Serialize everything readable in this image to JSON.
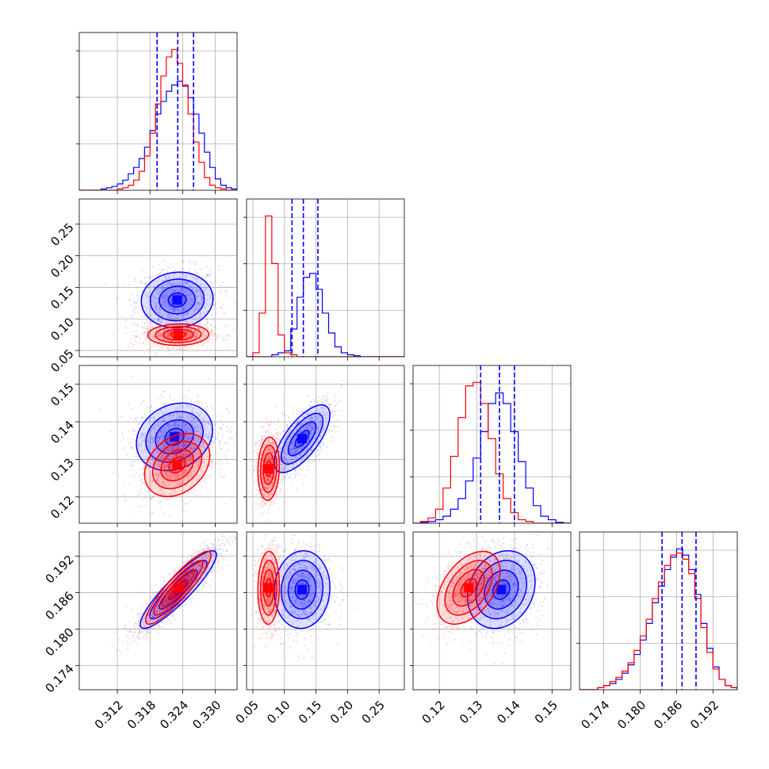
{
  "chart_data": {
    "type": "corner",
    "grid": true,
    "colors": {
      "blue": "#0000ff",
      "red": "#ff0000"
    },
    "parameters": [
      {
        "range": [
          0.305,
          0.334
        ],
        "ticks": [
          "0.312",
          "0.318",
          "0.324",
          "0.330"
        ]
      },
      {
        "range": [
          0.04,
          0.29
        ],
        "ticks": [
          "0.05",
          "0.10",
          "0.15",
          "0.20",
          "0.25"
        ]
      },
      {
        "range": [
          0.113,
          0.155
        ],
        "ticks": [
          "0.12",
          "0.13",
          "0.14",
          "0.15"
        ]
      },
      {
        "range": [
          0.17,
          0.196
        ],
        "ticks": [
          "0.174",
          "0.180",
          "0.186",
          "0.192"
        ]
      }
    ],
    "quantiles_blue": [
      [
        0.3193,
        0.3231,
        0.326
      ],
      [
        0.112,
        0.13,
        0.153
      ],
      [
        0.131,
        0.136,
        0.14
      ],
      [
        0.1836,
        0.1869,
        0.1892
      ]
    ],
    "series": [
      {
        "color": "blue",
        "hist": [
          {
            "bins": [
              0.305,
              0.306,
              0.307,
              0.308,
              0.309,
              0.31,
              0.311,
              0.312,
              0.313,
              0.314,
              0.315,
              0.316,
              0.317,
              0.318,
              0.319,
              0.32,
              0.321,
              0.322,
              0.323,
              0.324,
              0.325,
              0.326,
              0.327,
              0.328,
              0.329,
              0.33,
              0.331,
              0.332,
              0.333,
              0.334
            ],
            "counts": [
              0,
              0,
              0,
              0,
              1,
              2,
              3,
              5,
              8,
              13,
              18,
              25,
              34,
              47,
              60,
              70,
              78,
              83,
              86,
              82,
              73,
              60,
              45,
              30,
              18,
              9,
              4,
              2,
              1
            ]
          },
          {
            "bins": [
              0.04,
              0.05,
              0.06,
              0.07,
              0.08,
              0.09,
              0.1,
              0.11,
              0.12,
              0.13,
              0.14,
              0.15,
              0.16,
              0.17,
              0.18,
              0.19,
              0.2,
              0.21,
              0.22,
              0.23,
              0.24,
              0.25,
              0.26,
              0.27,
              0.28,
              0.29
            ],
            "counts": [
              0,
              0,
              0,
              0,
              1,
              2,
              3,
              14,
              30,
              40,
              42,
              34,
              22,
              12,
              5,
              2,
              1,
              0.5,
              0,
              0,
              0,
              0,
              0,
              0,
              0
            ]
          },
          {
            "bins": [
              0.113,
              0.115,
              0.117,
              0.119,
              0.121,
              0.123,
              0.125,
              0.127,
              0.129,
              0.131,
              0.133,
              0.135,
              0.137,
              0.139,
              0.141,
              0.143,
              0.145,
              0.147,
              0.149,
              0.151,
              0.153,
              0.155
            ],
            "counts": [
              0,
              0.5,
              1,
              2,
              4,
              8,
              14,
              24,
              37,
              52,
              68,
              74,
              68,
              52,
              35,
              20,
              10,
              4,
              2,
              0.5,
              0
            ]
          },
          {
            "bins": [
              0.17,
              0.171,
              0.172,
              0.173,
              0.174,
              0.175,
              0.176,
              0.177,
              0.178,
              0.179,
              0.18,
              0.181,
              0.182,
              0.183,
              0.184,
              0.185,
              0.186,
              0.187,
              0.188,
              0.189,
              0.19,
              0.191,
              0.192,
              0.193,
              0.194,
              0.195,
              0.196
            ],
            "counts": [
              0,
              0,
              0,
              1,
              2,
              3,
              5,
              8,
              12,
              17,
              24,
              32,
              42,
              50,
              58,
              64,
              68,
              65,
              58,
              46,
              32,
              20,
              11,
              5,
              2,
              1
            ]
          }
        ],
        "blobs": {
          "1-0": {
            "mu": [
              0.323,
              0.13
            ],
            "sd": [
              0.0033,
              0.022
            ],
            "rho": 0.05
          },
          "2-0": {
            "mu": [
              0.3225,
              0.136
            ],
            "sd": [
              0.0035,
              0.0045
            ],
            "rho": 0.2
          },
          "2-1": {
            "mu": [
              0.128,
              0.1355
            ],
            "sd": [
              0.022,
              0.0045
            ],
            "rho": 0.7
          },
          "3-0": {
            "mu": [
              0.3232,
              0.1865
            ],
            "sd": [
              0.0035,
              0.0032
            ],
            "rho": 0.9
          },
          "3-1": {
            "mu": [
              0.128,
              0.1865
            ],
            "sd": [
              0.022,
              0.0032
            ],
            "rho": 0.05
          },
          "3-2": {
            "mu": [
              0.1365,
              0.1865
            ],
            "sd": [
              0.0045,
              0.0032
            ],
            "rho": 0.2
          }
        }
      },
      {
        "color": "red",
        "hist": [
          {
            "bins": [
              0.305,
              0.306,
              0.307,
              0.308,
              0.309,
              0.31,
              0.311,
              0.312,
              0.313,
              0.314,
              0.315,
              0.316,
              0.317,
              0.318,
              0.319,
              0.32,
              0.321,
              0.322,
              0.323,
              0.324,
              0.325,
              0.326,
              0.327,
              0.328,
              0.329,
              0.33,
              0.331,
              0.332,
              0.333,
              0.334
            ],
            "counts": [
              0,
              0,
              0,
              0,
              0,
              0,
              0,
              1,
              2,
              4,
              8,
              15,
              27,
              45,
              68,
              90,
              105,
              111,
              100,
              83,
              60,
              38,
              22,
              10,
              4,
              2,
              1,
              0,
              0
            ]
          },
          {
            "bins": [
              0.04,
              0.05,
              0.06,
              0.07,
              0.08,
              0.09,
              0.1,
              0.11,
              0.12,
              0.13,
              0.14,
              0.15,
              0.16,
              0.17,
              0.18,
              0.19,
              0.2,
              0.21,
              0.22,
              0.23,
              0.24,
              0.25,
              0.26,
              0.27,
              0.28,
              0.29
            ],
            "counts": [
              0,
              2,
              22,
              71,
              47,
              11,
              2,
              1,
              0,
              0,
              0,
              0,
              0,
              0,
              0,
              0,
              0,
              0,
              0,
              0,
              0,
              0,
              0,
              0,
              0
            ]
          },
          {
            "bins": [
              0.113,
              0.115,
              0.117,
              0.119,
              0.121,
              0.123,
              0.125,
              0.127,
              0.129,
              0.131,
              0.133,
              0.135,
              0.137,
              0.139,
              0.141,
              0.143,
              0.145,
              0.147,
              0.149,
              0.151,
              0.153,
              0.155
            ],
            "counts": [
              0,
              1,
              3,
              8,
              20,
              38,
              60,
              78,
              80,
              68,
              48,
              28,
              14,
              6,
              2,
              1,
              0,
              0,
              0,
              0,
              0
            ]
          },
          {
            "bins": [
              0.17,
              0.171,
              0.172,
              0.173,
              0.174,
              0.175,
              0.176,
              0.177,
              0.178,
              0.179,
              0.18,
              0.181,
              0.182,
              0.183,
              0.184,
              0.185,
              0.186,
              0.187,
              0.188,
              0.189,
              0.19,
              0.191,
              0.192,
              0.193,
              0.194,
              0.195,
              0.196
            ],
            "counts": [
              0,
              0,
              0,
              1,
              2,
              4,
              6,
              9,
              13,
              19,
              26,
              34,
              44,
              52,
              60,
              65,
              66,
              63,
              56,
              44,
              30,
              18,
              10,
              5,
              2,
              1
            ]
          }
        ],
        "blobs": {
          "1-0": {
            "mu": [
              0.3232,
              0.075
            ],
            "sd": [
              0.0028,
              0.0085
            ],
            "rho": 0.05
          },
          "2-0": {
            "mu": [
              0.323,
              0.1285
            ],
            "sd": [
              0.003,
              0.0042
            ],
            "rho": 0.3
          },
          "2-1": {
            "mu": [
              0.075,
              0.1275
            ],
            "sd": [
              0.0085,
              0.0042
            ],
            "rho": 0.1
          },
          "3-0": {
            "mu": [
              0.3232,
              0.1868
            ],
            "sd": [
              0.003,
              0.003
            ],
            "rho": 0.9
          },
          "3-1": {
            "mu": [
              0.075,
              0.1868
            ],
            "sd": [
              0.0085,
              0.003
            ],
            "rho": 0.05
          },
          "3-2": {
            "mu": [
              0.1278,
              0.1868
            ],
            "sd": [
              0.0042,
              0.003
            ],
            "rho": 0.45
          }
        }
      }
    ],
    "contour_levels_sigma": [
      0.5,
      1.0,
      1.5,
      2.0
    ]
  }
}
